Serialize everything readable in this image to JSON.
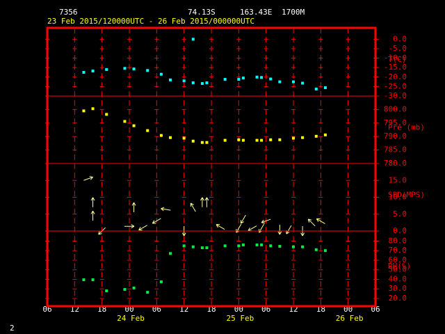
{
  "header": {
    "station": "7356",
    "lat": "74.13S",
    "lon": "163.43E",
    "elev": "1700M",
    "period": "23 Feb 2015/120000UTC - 26 Feb 2015/000000UTC",
    "page": "2"
  },
  "chart_data": {
    "type": "meteogram",
    "xlim": [
      0,
      72
    ],
    "xticks": [
      {
        "value": 0,
        "label": "06"
      },
      {
        "value": 6,
        "label": "12"
      },
      {
        "value": 12,
        "label": "18"
      },
      {
        "value": 18,
        "label": "00"
      },
      {
        "value": 24,
        "label": "06"
      },
      {
        "value": 30,
        "label": "12"
      },
      {
        "value": 36,
        "label": "18"
      },
      {
        "value": 42,
        "label": "00"
      },
      {
        "value": 48,
        "label": "06"
      },
      {
        "value": 54,
        "label": "12"
      },
      {
        "value": 60,
        "label": "18"
      },
      {
        "value": 66,
        "label": "00"
      },
      {
        "value": 72,
        "label": "06"
      }
    ],
    "date_labels": [
      {
        "value": 18,
        "label": "24 Feb"
      },
      {
        "value": 42,
        "label": "25 Feb"
      },
      {
        "value": 66,
        "label": "26 Feb"
      }
    ],
    "panels": [
      {
        "type": "scatter",
        "label": "T(C)",
        "ylim": [
          -30,
          6
        ],
        "yticks": [
          {
            "value": 0,
            "label": "0.0"
          },
          {
            "value": -5,
            "label": "-5.0"
          },
          {
            "value": -10,
            "label": "-10.0"
          },
          {
            "value": -15,
            "label": "-15.0"
          },
          {
            "value": -20,
            "label": "-20.0"
          },
          {
            "value": -25,
            "label": "-25.0"
          },
          {
            "value": -30,
            "label": "-30.0"
          }
        ],
        "series": [
          {
            "color": "#00ffff",
            "x": [
              8,
              10,
              13,
              17,
              19,
              22,
              25,
              27,
              30,
              32,
              32,
              34,
              35,
              39,
              42,
              43,
              46,
              47,
              49,
              51,
              54,
              56,
              59,
              61
            ],
            "values": [
              -17.5,
              -16.8,
              -16,
              -15.4,
              -15.7,
              -16.5,
              -18.5,
              -21.5,
              -22,
              0,
              -23,
              -23.4,
              -23,
              -21.2,
              -21.2,
              -20.5,
              -20,
              -20.2,
              -21,
              -22.5,
              -22.5,
              -23.2,
              -26.3,
              -25.6
            ]
          }
        ]
      },
      {
        "type": "scatter",
        "label": "Pre (mb)",
        "ylim": [
          780,
          805
        ],
        "yticks": [
          {
            "value": 780,
            "label": "780.0"
          },
          {
            "value": 785,
            "label": "785.0"
          },
          {
            "value": 790,
            "label": "790.0"
          },
          {
            "value": 795,
            "label": "795.0"
          },
          {
            "value": 800,
            "label": "800.0"
          }
        ],
        "series": [
          {
            "color": "#ffff00",
            "x": [
              8,
              10,
              13,
              17,
              19,
              22,
              25,
              27,
              30,
              32,
              34,
              35,
              39,
              42,
              43,
              46,
              47,
              49,
              51,
              54,
              56,
              59,
              61
            ],
            "values": [
              799.5,
              800.3,
              798.2,
              795.6,
              794,
              792.2,
              790.4,
              789.6,
              789.4,
              788.3,
              787.8,
              787.8,
              788.6,
              788.8,
              788.6,
              788.6,
              788.6,
              788.8,
              788.8,
              789.4,
              789.6,
              790.1,
              790.6
            ]
          }
        ]
      },
      {
        "type": "vector",
        "label": "SPD(MPS)",
        "ylim": [
          0,
          20
        ],
        "yticks": [
          {
            "value": 0,
            "label": "0.0"
          },
          {
            "value": 5,
            "label": "5.0"
          },
          {
            "value": 10,
            "label": "10.0"
          },
          {
            "value": 15,
            "label": "15.0"
          }
        ],
        "series": [
          {
            "color": "#ffff99",
            "x": [
              9,
              10,
              10,
              12,
              18,
              19,
              21,
              24,
              26,
              30,
              32,
              34,
              35,
              38,
              42,
              43,
              45,
              47,
              48,
              51,
              53,
              56,
              58,
              60
            ],
            "values": [
              15.5,
              8.5,
              4.5,
              0,
              1.4,
              7,
              1,
              3,
              6.4,
              0,
              7,
              8.5,
              8.5,
              1.2,
              0.8,
              3.5,
              0.8,
              0.8,
              3,
              0.4,
              0.4,
              0,
              2.5,
              2.9
            ],
            "dir": [
              70,
              0,
              0,
              225,
              90,
              0,
              240,
              240,
              280,
              180,
              330,
              0,
              0,
              300,
              210,
              210,
              240,
              210,
              250,
              180,
              210,
              180,
              315,
              300
            ]
          }
        ]
      },
      {
        "type": "scatter",
        "label": "RH(%)",
        "ylim": [
          12,
          90.5
        ],
        "yticks": [
          {
            "value": 20,
            "label": "20.0"
          },
          {
            "value": 30,
            "label": "30.0"
          },
          {
            "value": 40,
            "label": "40.0"
          },
          {
            "value": 50,
            "label": "50.0"
          },
          {
            "value": 60,
            "label": "60.0"
          },
          {
            "value": 70,
            "label": "70.0"
          },
          {
            "value": 80,
            "label": "80.0"
          }
        ],
        "series": [
          {
            "color": "#00ee44",
            "x": [
              8,
              10,
              13,
              17,
              19,
              22,
              25,
              27,
              30,
              32,
              34,
              35,
              39,
              42,
              43,
              46,
              47,
              49,
              51,
              54,
              56,
              59,
              61
            ],
            "values": [
              39.6,
              39.6,
              28,
              29.5,
              31,
              26.5,
              37.5,
              67,
              75,
              74,
              73,
              73,
              75,
              75,
              76,
              76,
              76,
              75,
              74.5,
              74,
              74,
              71,
              70
            ]
          }
        ]
      }
    ]
  }
}
